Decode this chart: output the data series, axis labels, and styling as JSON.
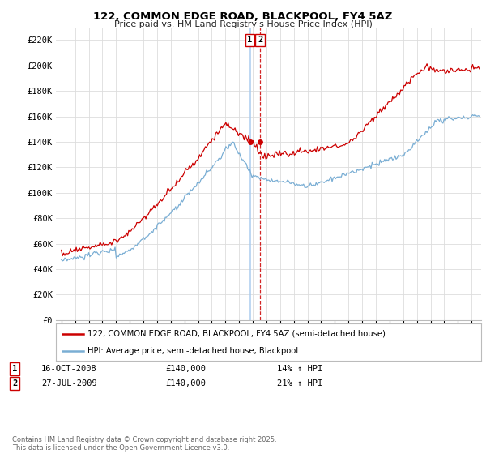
{
  "title": "122, COMMON EDGE ROAD, BLACKPOOL, FY4 5AZ",
  "subtitle": "Price paid vs. HM Land Registry's House Price Index (HPI)",
  "legend_line1": "122, COMMON EDGE ROAD, BLACKPOOL, FY4 5AZ (semi-detached house)",
  "legend_line2": "HPI: Average price, semi-detached house, Blackpool",
  "annotation1_date": "16-OCT-2008",
  "annotation1_price": "£140,000",
  "annotation1_hpi": "14% ↑ HPI",
  "annotation2_date": "27-JUL-2009",
  "annotation2_price": "£140,000",
  "annotation2_hpi": "21% ↑ HPI",
  "footer": "Contains HM Land Registry data © Crown copyright and database right 2025.\nThis data is licensed under the Open Government Licence v3.0.",
  "red_color": "#cc0000",
  "blue_color": "#7aaed4",
  "vline1_color": "#aaccee",
  "vline2_color": "#cc0000",
  "grid_color": "#dddddd",
  "bg_color": "#ffffff",
  "ylim": [
    0,
    230000
  ],
  "yticks": [
    0,
    20000,
    40000,
    60000,
    80000,
    100000,
    120000,
    140000,
    160000,
    180000,
    200000,
    220000
  ],
  "ytick_labels": [
    "£0",
    "£20K",
    "£40K",
    "£60K",
    "£80K",
    "£100K",
    "£120K",
    "£140K",
    "£160K",
    "£180K",
    "£200K",
    "£220K"
  ],
  "t1": 2008.79,
  "t2": 2009.54
}
